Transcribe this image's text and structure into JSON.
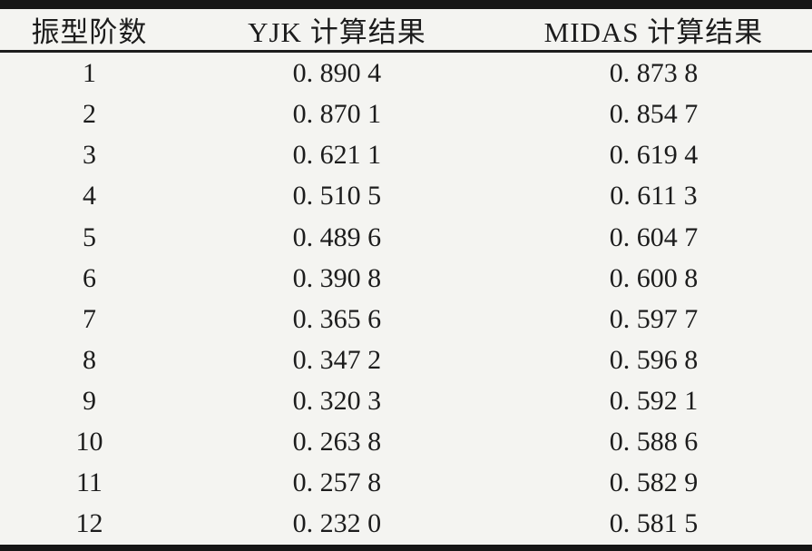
{
  "page": {
    "background_color": "#f4f4f1",
    "text_color": "#1c1c1c",
    "rule_color": "#161616"
  },
  "table": {
    "columns": [
      "振型阶数",
      "YJK 计算结果",
      "MIDAS 计算结果"
    ],
    "rows": [
      {
        "mode": "1",
        "yjk": "0. 890 4",
        "midas": "0. 873 8"
      },
      {
        "mode": "2",
        "yjk": "0. 870 1",
        "midas": "0. 854 7"
      },
      {
        "mode": "3",
        "yjk": "0. 621 1",
        "midas": "0. 619 4"
      },
      {
        "mode": "4",
        "yjk": "0. 510 5",
        "midas": "0. 611 3"
      },
      {
        "mode": "5",
        "yjk": "0. 489 6",
        "midas": "0. 604 7"
      },
      {
        "mode": "6",
        "yjk": "0. 390 8",
        "midas": "0. 600 8"
      },
      {
        "mode": "7",
        "yjk": "0. 365 6",
        "midas": "0. 597 7"
      },
      {
        "mode": "8",
        "yjk": "0. 347 2",
        "midas": "0. 596 8"
      },
      {
        "mode": "9",
        "yjk": "0. 320 3",
        "midas": "0. 592 1"
      },
      {
        "mode": "10",
        "yjk": "0. 263 8",
        "midas": "0. 588 6"
      },
      {
        "mode": "11",
        "yjk": "0. 257 8",
        "midas": "0. 582 9"
      },
      {
        "mode": "12",
        "yjk": "0. 232 0",
        "midas": "0. 581 5"
      }
    ]
  },
  "chart_data": {
    "type": "table",
    "columns": [
      "振型阶数",
      "YJK 计算结果",
      "MIDAS 计算结果"
    ],
    "categories": [
      "1",
      "2",
      "3",
      "4",
      "5",
      "6",
      "7",
      "8",
      "9",
      "10",
      "11",
      "12"
    ],
    "series": [
      {
        "name": "YJK 计算结果",
        "values": [
          0.8904,
          0.8701,
          0.6211,
          0.5105,
          0.4896,
          0.3908,
          0.3656,
          0.3472,
          0.3203,
          0.2638,
          0.2578,
          0.232
        ]
      },
      {
        "name": "MIDAS 计算结果",
        "values": [
          0.8738,
          0.8547,
          0.6194,
          0.6113,
          0.6047,
          0.6008,
          0.5977,
          0.5968,
          0.5921,
          0.5886,
          0.5829,
          0.5815
        ]
      }
    ]
  }
}
